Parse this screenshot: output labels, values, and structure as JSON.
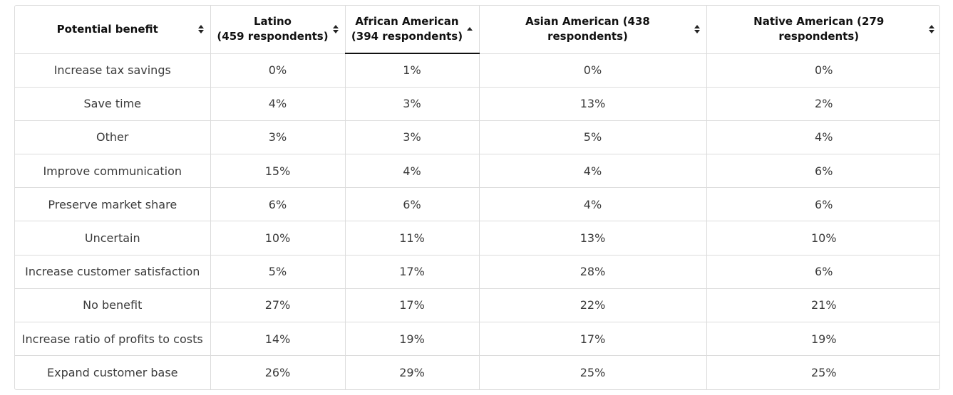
{
  "table": {
    "headers": [
      {
        "label": "Potential benefit",
        "sort": "both"
      },
      {
        "label": "Latino (459 respondents)",
        "line1": "Latino",
        "line2": "(459 respondents)",
        "sort": "both"
      },
      {
        "label": "African American (394 respondents)",
        "line1": "African American",
        "line2": "(394 respondents)",
        "sort": "asc"
      },
      {
        "label": "Asian American (438 respondents)",
        "sort": "both"
      },
      {
        "label": "Native American (279 respondents)",
        "sort": "both"
      }
    ],
    "rows": [
      {
        "benefit": "Increase tax savings",
        "latino": "0%",
        "african_american": "1%",
        "asian_american": "0%",
        "native_american": "0%"
      },
      {
        "benefit": "Save time",
        "latino": "4%",
        "african_american": "3%",
        "asian_american": "13%",
        "native_american": "2%"
      },
      {
        "benefit": "Other",
        "latino": "3%",
        "african_american": "3%",
        "asian_american": "5%",
        "native_american": "4%"
      },
      {
        "benefit": "Improve communication",
        "latino": "15%",
        "african_american": "4%",
        "asian_american": "4%",
        "native_american": "6%"
      },
      {
        "benefit": "Preserve market share",
        "latino": "6%",
        "african_american": "6%",
        "asian_american": "4%",
        "native_american": "6%"
      },
      {
        "benefit": "Uncertain",
        "latino": "10%",
        "african_american": "11%",
        "asian_american": "13%",
        "native_american": "10%"
      },
      {
        "benefit": "Increase customer satisfaction",
        "latino": "5%",
        "african_american": "17%",
        "asian_american": "28%",
        "native_american": "6%"
      },
      {
        "benefit": "No benefit",
        "latino": "27%",
        "african_american": "17%",
        "asian_american": "22%",
        "native_american": "21%"
      },
      {
        "benefit": "Increase ratio of profits to costs",
        "latino": "14%",
        "african_american": "19%",
        "asian_american": "17%",
        "native_american": "19%"
      },
      {
        "benefit": "Expand customer base",
        "latino": "26%",
        "african_american": "29%",
        "asian_american": "25%",
        "native_american": "25%"
      }
    ]
  },
  "icons": {
    "sort_both": "sort-both-icon",
    "sort_asc": "sort-ascending-icon"
  },
  "colors": {
    "border": "#dcdcdc",
    "header_text": "#111111",
    "cell_text": "#3b3b3b",
    "active_underline": "#111111"
  }
}
